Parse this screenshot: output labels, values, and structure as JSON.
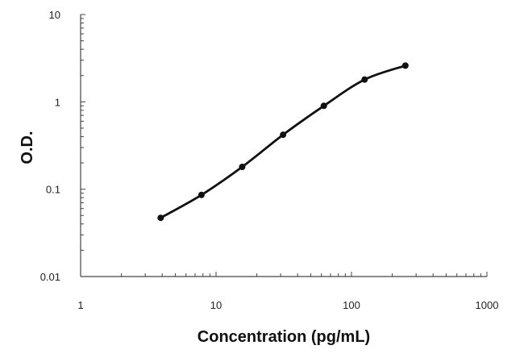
{
  "chart_data": {
    "type": "line",
    "title": "",
    "xlabel": "Concentration (pg/mL)",
    "ylabel": "O.D.",
    "x_scale": "log",
    "y_scale": "log",
    "xlim": [
      1,
      1000
    ],
    "ylim": [
      0.01,
      10
    ],
    "x_ticks": [
      1,
      10,
      100,
      1000
    ],
    "y_ticks": [
      0.01,
      0.1,
      1,
      10
    ],
    "x_tick_labels": [
      "1",
      "10",
      "100",
      "1000"
    ],
    "y_tick_labels": [
      "0.01",
      "0.1",
      "1",
      "10"
    ],
    "grid": false,
    "legend": "none",
    "series": [
      {
        "x": [
          3.9,
          7.8,
          15.6,
          31.25,
          62.5,
          125,
          250
        ],
        "y": [
          0.047,
          0.086,
          0.18,
          0.42,
          0.9,
          1.8,
          2.6
        ]
      }
    ],
    "colors": {
      "line": "#111111",
      "axis": "#444444"
    }
  }
}
